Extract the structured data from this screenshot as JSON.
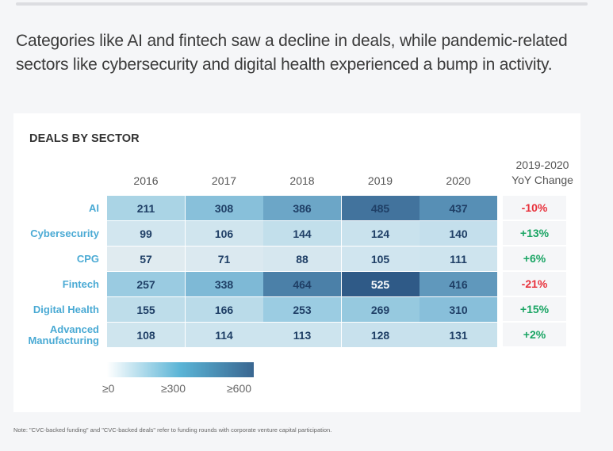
{
  "headline": "Categories like AI and fintech saw a decline in deals, while pandemic-related sectors like cybersecurity and digital health experienced a bump in activity.",
  "note": "Note: \"CVC-backed funding\" and \"CVC-backed deals\" refer to funding rounds with corporate venture capital participation.",
  "colors": {
    "negative": "#e8313b",
    "positive": "#1aa564",
    "row_label": "#4aaad4",
    "cell_text": "#1f3f66",
    "scale_low": "#ffffff",
    "scale_mid": "#5ab4d6",
    "scale_high": "#2f5a87"
  },
  "chart_data": {
    "type": "heatmap",
    "title": "DEALS BY SECTOR",
    "columns": [
      "2016",
      "2017",
      "2018",
      "2019",
      "2020"
    ],
    "yoy_header": [
      "2019-2020",
      "YoY Change"
    ],
    "rows": [
      {
        "label": "AI",
        "values": [
          211,
          308,
          386,
          485,
          437
        ],
        "yoy": "-10%",
        "yoy_sign": "negative"
      },
      {
        "label": "Cybersecurity",
        "values": [
          99,
          106,
          144,
          124,
          140
        ],
        "yoy": "+13%",
        "yoy_sign": "positive"
      },
      {
        "label": "CPG",
        "values": [
          57,
          71,
          88,
          105,
          111
        ],
        "yoy": "+6%",
        "yoy_sign": "positive"
      },
      {
        "label": "Fintech",
        "values": [
          257,
          338,
          464,
          525,
          416
        ],
        "yoy": "-21%",
        "yoy_sign": "negative"
      },
      {
        "label": "Digital Health",
        "values": [
          155,
          166,
          253,
          269,
          310
        ],
        "yoy": "+15%",
        "yoy_sign": "positive"
      },
      {
        "label": "Advanced Manufacturing",
        "label_lines": [
          "Advanced",
          "Manufacturing"
        ],
        "values": [
          108,
          114,
          113,
          128,
          131
        ],
        "yoy": "+2%",
        "yoy_sign": "positive"
      }
    ],
    "legend": {
      "labels": [
        "≥0",
        "≥300",
        "≥600"
      ],
      "range": [
        0,
        600
      ]
    }
  }
}
